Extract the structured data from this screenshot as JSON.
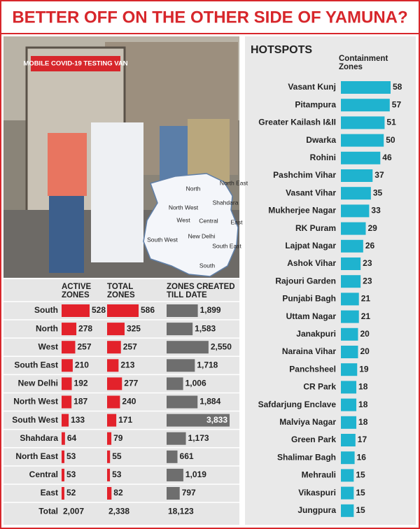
{
  "title": "BETTER OFF ON THE OTHER SIDE OF YAMUNA?",
  "photo": {
    "van_sign": "MOBILE COVID-19 TESTING VAN",
    "map_labels": [
      "North",
      "North East",
      "Shahdara",
      "North West",
      "West",
      "Central",
      "East",
      "New Delhi",
      "South West",
      "South East",
      "South"
    ]
  },
  "chart_data": [
    {
      "type": "bar",
      "categories": [
        "South",
        "North",
        "West",
        "South East",
        "New Delhi",
        "North West",
        "South West",
        "Shahdara",
        "North East",
        "Central",
        "East"
      ],
      "series": [
        {
          "name": "ACTIVE ZONES",
          "color": "#e3222b",
          "values": [
            528,
            278,
            257,
            210,
            192,
            187,
            133,
            64,
            53,
            53,
            52
          ],
          "total": {
            "value": 2007,
            "label": "2,007"
          }
        },
        {
          "name": "TOTAL ZONES",
          "color": "#e3222b",
          "values": [
            586,
            325,
            257,
            213,
            277,
            240,
            171,
            79,
            55,
            53,
            82
          ],
          "total": {
            "value": 2338,
            "label": "2,338"
          }
        },
        {
          "name": "ZONES CREATED TILL DATE",
          "color": "#6e6e6e",
          "values": [
            1899,
            1583,
            2550,
            1718,
            1006,
            1884,
            3833,
            1173,
            661,
            1019,
            797
          ],
          "value_labels": [
            "1,899",
            "1,583",
            "2,550",
            "1,718",
            "1,006",
            "1,884",
            "3,833",
            "1,173",
            "661",
            "1,019",
            "797"
          ],
          "total": {
            "value": 18123,
            "label": "18,123"
          }
        }
      ],
      "total_label": "Total"
    },
    {
      "type": "bar",
      "title": "HOTSPOTS",
      "subtitle": "Containment Zones",
      "color": "#1fb3cf",
      "categories": [
        "Vasant Kunj",
        "Pitampura",
        "Greater Kailash I&II",
        "Dwarka",
        "Rohini",
        "Pashchim Vihar",
        "Vasant Vihar",
        "Mukherjee Nagar",
        "RK Puram",
        "Lajpat Nagar",
        "Ashok Vihar",
        "Rajouri Garden",
        "Punjabi Bagh",
        "Uttam Nagar",
        "Janakpuri",
        "Naraina Vihar",
        "Panchsheel",
        "CR Park",
        "Safdarjung Enclave",
        "Malviya Nagar",
        "Green Park",
        "Shalimar Bagh",
        "Mehrauli",
        "Vikaspuri",
        "Jungpura"
      ],
      "values": [
        58,
        57,
        51,
        50,
        46,
        37,
        35,
        33,
        29,
        26,
        23,
        23,
        21,
        21,
        20,
        20,
        19,
        18,
        18,
        18,
        17,
        16,
        15,
        15,
        15
      ]
    }
  ]
}
